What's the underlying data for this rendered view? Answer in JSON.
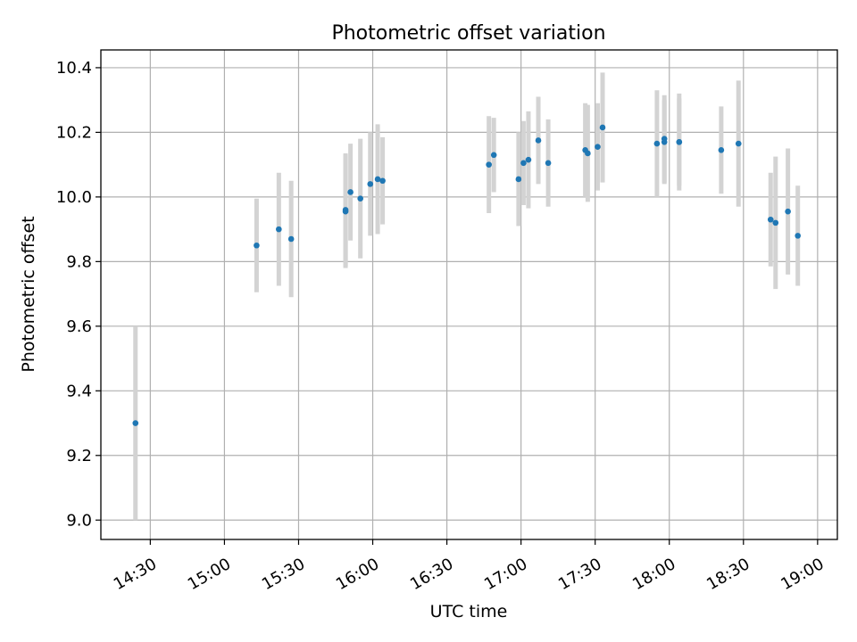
{
  "chart_data": {
    "type": "scatter",
    "title": "Photometric offset variation",
    "xlabel": "UTC time",
    "ylabel": "Photometric offset",
    "x_axis_type": "time",
    "xlim": [
      "14:10",
      "19:08"
    ],
    "ylim": [
      8.94,
      10.455
    ],
    "grid": true,
    "x_ticks": [
      "14:30",
      "15:00",
      "15:30",
      "16:00",
      "16:30",
      "17:00",
      "17:30",
      "18:00",
      "18:30",
      "19:00"
    ],
    "y_ticks": [
      9.0,
      9.2,
      9.4,
      9.6,
      9.8,
      10.0,
      10.2,
      10.4
    ],
    "y_tick_labels": [
      "9.0",
      "9.2",
      "9.4",
      "9.6",
      "9.8",
      "10.0",
      "10.2",
      "10.4"
    ],
    "marker_color": "#1f77b4",
    "errorbar_color": "#d3d3d3",
    "points": [
      {
        "x": "14:24",
        "y": 9.3,
        "yerr": 0.3
      },
      {
        "x": "15:13",
        "y": 9.85,
        "yerr": 0.145
      },
      {
        "x": "15:22",
        "y": 9.9,
        "yerr": 0.175
      },
      {
        "x": "15:27",
        "y": 9.87,
        "yerr": 0.18
      },
      {
        "x": "15:49",
        "y": 9.955,
        "yerr": 0.175
      },
      {
        "x": "15:49",
        "y": 9.96,
        "yerr": 0.175
      },
      {
        "x": "15:51",
        "y": 10.015,
        "yerr": 0.15
      },
      {
        "x": "15:55",
        "y": 9.995,
        "yerr": 0.185
      },
      {
        "x": "15:59",
        "y": 10.04,
        "yerr": 0.16
      },
      {
        "x": "16:02",
        "y": 10.055,
        "yerr": 0.17
      },
      {
        "x": "16:04",
        "y": 10.05,
        "yerr": 0.135
      },
      {
        "x": "16:47",
        "y": 10.1,
        "yerr": 0.15
      },
      {
        "x": "16:49",
        "y": 10.13,
        "yerr": 0.115
      },
      {
        "x": "16:59",
        "y": 10.055,
        "yerr": 0.145
      },
      {
        "x": "17:01",
        "y": 10.105,
        "yerr": 0.13
      },
      {
        "x": "17:03",
        "y": 10.115,
        "yerr": 0.15
      },
      {
        "x": "17:07",
        "y": 10.175,
        "yerr": 0.135
      },
      {
        "x": "17:11",
        "y": 10.105,
        "yerr": 0.135
      },
      {
        "x": "17:26",
        "y": 10.145,
        "yerr": 0.145
      },
      {
        "x": "17:27",
        "y": 10.135,
        "yerr": 0.15
      },
      {
        "x": "17:31",
        "y": 10.155,
        "yerr": 0.135
      },
      {
        "x": "17:33",
        "y": 10.215,
        "yerr": 0.17
      },
      {
        "x": "17:55",
        "y": 10.165,
        "yerr": 0.165
      },
      {
        "x": "17:58",
        "y": 10.17,
        "yerr": 0.13
      },
      {
        "x": "17:58",
        "y": 10.18,
        "yerr": 0.135
      },
      {
        "x": "18:04",
        "y": 10.17,
        "yerr": 0.15
      },
      {
        "x": "18:04",
        "y": 10.17,
        "yerr": 0.135
      },
      {
        "x": "18:21",
        "y": 10.145,
        "yerr": 0.135
      },
      {
        "x": "18:28",
        "y": 10.165,
        "yerr": 0.195
      },
      {
        "x": "18:41",
        "y": 9.93,
        "yerr": 0.145
      },
      {
        "x": "18:43",
        "y": 9.92,
        "yerr": 0.205
      },
      {
        "x": "18:48",
        "y": 9.955,
        "yerr": 0.195
      },
      {
        "x": "18:52",
        "y": 9.88,
        "yerr": 0.155
      }
    ]
  }
}
